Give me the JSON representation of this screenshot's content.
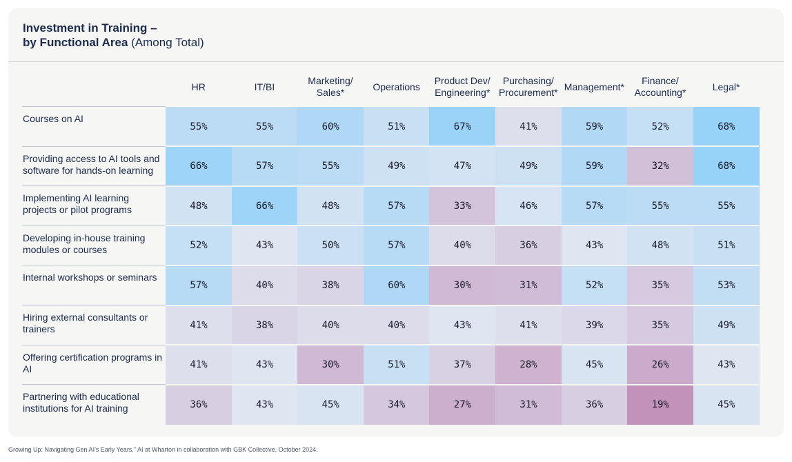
{
  "title": {
    "bold": "Investment in Training –",
    "bold2": "by Functional Area",
    "normal": " (Among Total)"
  },
  "source": "Growing Up: Navigating Gen AI's Early Years.\" AI at Wharton in collaboration with GBK Collective, October 2024.",
  "colors": {
    "blue_high": "#97d2f8",
    "purple_low": "#c392bb",
    "mid": "#dfe6f2",
    "text": "#1a2a4f"
  },
  "chart_data": {
    "type": "table",
    "columns": [
      "HR",
      "IT/BI",
      "Marketing/\nSales*",
      "Operations",
      "Product Dev/\nEngineering*",
      "Purchasing/\nProcurement*",
      "Management*",
      "Finance/\nAccounting*",
      "Legal*"
    ],
    "rows": [
      "Courses on AI",
      "Providing access to AI tools and software for hands-on learning",
      "Implementing AI learning projects or pilot programs",
      "Developing in-house training modules or courses",
      "Internal workshops or seminars",
      "Hiring external consultants or trainers",
      "Offering certification programs in AI",
      "Partnering with educational institutions for AI training"
    ],
    "values": [
      [
        55,
        55,
        60,
        51,
        67,
        41,
        59,
        52,
        68
      ],
      [
        66,
        57,
        55,
        49,
        47,
        49,
        59,
        32,
        68
      ],
      [
        48,
        66,
        48,
        57,
        33,
        46,
        57,
        55,
        55
      ],
      [
        52,
        43,
        50,
        57,
        40,
        36,
        43,
        48,
        51
      ],
      [
        57,
        40,
        38,
        60,
        30,
        31,
        52,
        35,
        53
      ],
      [
        41,
        38,
        40,
        40,
        43,
        41,
        39,
        35,
        49
      ],
      [
        41,
        43,
        30,
        51,
        37,
        28,
        45,
        26,
        43
      ],
      [
        36,
        43,
        45,
        34,
        27,
        31,
        36,
        19,
        45
      ]
    ],
    "unit": "%"
  }
}
